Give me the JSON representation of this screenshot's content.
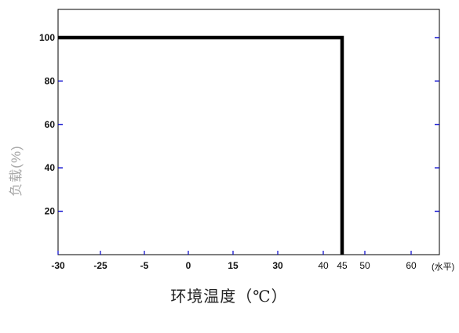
{
  "chart_data": {
    "type": "line",
    "title": "",
    "xlabel": "环境温度（℃）",
    "ylabel": "负载(%)",
    "x_unit": "(水平)",
    "x_categories": [
      "-30",
      "-25",
      "-5",
      "0",
      "15",
      "30",
      "40",
      "45",
      "50",
      "60"
    ],
    "bold_x_categories": [
      "-30",
      "-25",
      "-5",
      "0",
      "15",
      "30"
    ],
    "y_ticks": [
      20,
      40,
      60,
      80,
      100
    ],
    "ylim": [
      0,
      113
    ],
    "grid": false,
    "series": [
      {
        "x": [
          "-30",
          "45",
          "45"
        ],
        "y": [
          100,
          100,
          0
        ]
      }
    ],
    "colors": {
      "line": "#000000",
      "tick_marks": "#0000cc",
      "frame": "#000000",
      "ylabel": "#a8a8a8"
    }
  }
}
